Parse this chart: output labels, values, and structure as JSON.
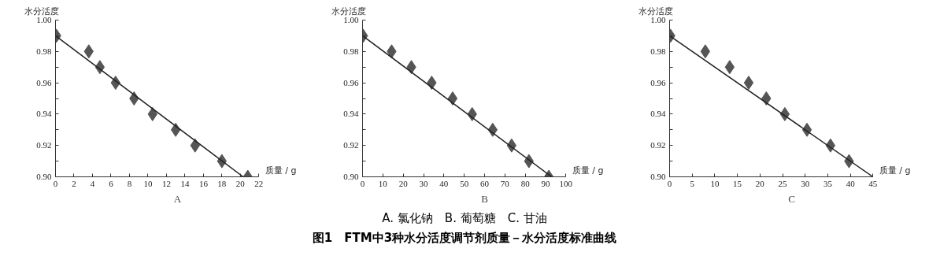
{
  "chart_data": [
    {
      "type": "scatter",
      "xlabel": "质量 / g",
      "ylabel": "水分活度",
      "annotations": [
        "A"
      ],
      "marker": "diamond",
      "grid": false,
      "xlim": [
        0,
        22
      ],
      "xticks": [
        0,
        2,
        4,
        6,
        8,
        10,
        12,
        14,
        16,
        18,
        20,
        22
      ],
      "ylim": [
        0.9,
        1.0
      ],
      "yticks": [
        {
          "value": 0.9,
          "label": "0.90"
        },
        {
          "value": 0.91,
          "label": null
        },
        {
          "value": 0.92,
          "label": "0.92"
        },
        {
          "value": 0.93,
          "label": null
        },
        {
          "value": 0.94,
          "label": "0.94"
        },
        {
          "value": 0.95,
          "label": null
        },
        {
          "value": 0.96,
          "label": "0.96"
        },
        {
          "value": 0.97,
          "label": null
        },
        {
          "value": 0.98,
          "label": "0.98"
        },
        {
          "value": 0.99,
          "label": null
        },
        {
          "value": 1.0,
          "label": "1.00"
        }
      ],
      "series": [
        {
          "type": "scatter",
          "color": "#555555",
          "x": [
            0.1,
            3.6,
            4.8,
            6.5,
            8.5,
            10.5,
            13.0,
            15.1,
            18.0,
            20.8
          ],
          "values": [
            0.99,
            0.98,
            0.97,
            0.96,
            0.95,
            0.94,
            0.93,
            0.92,
            0.91,
            0.9
          ]
        },
        {
          "type": "line",
          "marker": "none",
          "color": "#222222",
          "x": [
            0,
            20.3
          ],
          "values": [
            0.99,
            0.9
          ]
        }
      ]
    },
    {
      "type": "scatter",
      "xlabel": "质量 / g",
      "ylabel": "水分活度",
      "annotations": [
        "B"
      ],
      "marker": "diamond",
      "grid": false,
      "xlim": [
        0,
        100
      ],
      "xticks": [
        0,
        10,
        20,
        30,
        40,
        50,
        60,
        70,
        80,
        90,
        100
      ],
      "ylim": [
        0.9,
        1.0
      ],
      "yticks": [
        {
          "value": 0.9,
          "label": "0.90"
        },
        {
          "value": 0.91,
          "label": null
        },
        {
          "value": 0.92,
          "label": "0.92"
        },
        {
          "value": 0.93,
          "label": null
        },
        {
          "value": 0.94,
          "label": "0.94"
        },
        {
          "value": 0.95,
          "label": null
        },
        {
          "value": 0.96,
          "label": "0.96"
        },
        {
          "value": 0.97,
          "label": null
        },
        {
          "value": 0.98,
          "label": "0.98"
        },
        {
          "value": 0.99,
          "label": null
        },
        {
          "value": 1.0,
          "label": "1.00"
        }
      ],
      "series": [
        {
          "type": "scatter",
          "color": "#555555",
          "x": [
            0.3,
            14.3,
            24,
            34,
            44.3,
            53.9,
            64,
            73.3,
            81.8,
            91.6
          ],
          "values": [
            0.99,
            0.98,
            0.97,
            0.96,
            0.95,
            0.94,
            0.93,
            0.92,
            0.91,
            0.9
          ]
        },
        {
          "type": "line",
          "marker": "none",
          "color": "#222222",
          "x": [
            0,
            93
          ],
          "values": [
            0.99,
            0.9
          ]
        }
      ]
    },
    {
      "type": "scatter",
      "xlabel": "质量 / g",
      "ylabel": "水分活度",
      "annotations": [
        "C"
      ],
      "marker": "diamond",
      "grid": false,
      "xlim": [
        0,
        45
      ],
      "xticks": [
        0,
        5,
        10,
        15,
        20,
        25,
        30,
        35,
        40,
        45
      ],
      "ylim": [
        0.9,
        1.0
      ],
      "yticks": [
        {
          "value": 0.9,
          "label": "0.90"
        },
        {
          "value": 0.91,
          "label": null
        },
        {
          "value": 0.92,
          "label": "0.92"
        },
        {
          "value": 0.93,
          "label": null
        },
        {
          "value": 0.94,
          "label": "0.94"
        },
        {
          "value": 0.95,
          "label": null
        },
        {
          "value": 0.96,
          "label": "0.96"
        },
        {
          "value": 0.97,
          "label": null
        },
        {
          "value": 0.98,
          "label": "0.98"
        },
        {
          "value": 0.99,
          "label": null
        },
        {
          "value": 1.0,
          "label": "1.00"
        }
      ],
      "series": [
        {
          "type": "scatter",
          "color": "#555555",
          "x": [
            0.2,
            7.9,
            13.3,
            17.5,
            21.4,
            25.5,
            30.4,
            35.6,
            39.7
          ],
          "values": [
            0.99,
            0.98,
            0.97,
            0.96,
            0.95,
            0.94,
            0.93,
            0.92,
            0.91
          ]
        },
        {
          "type": "line",
          "marker": "none",
          "color": "#222222",
          "x": [
            0,
            45
          ],
          "values": [
            0.99,
            0.9
          ]
        }
      ]
    },
    {
      "type": "other",
      "title": "图1　FTM中3种水分活度调节剂质量－水分活度标准曲线",
      "annotations": [
        "A. 氯化钠　B. 葡萄糖　C. 甘油"
      ]
    }
  ]
}
